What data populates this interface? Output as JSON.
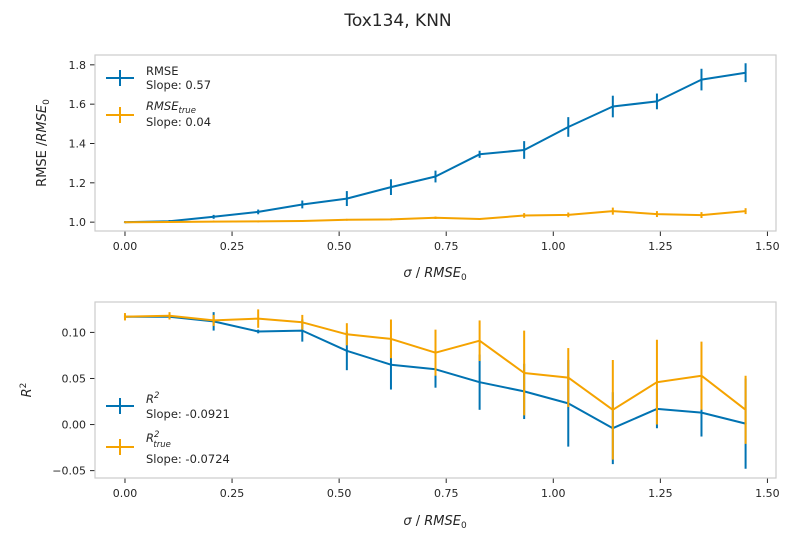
{
  "figure": {
    "title": "Tox134, KNN"
  },
  "colors": {
    "series1": "#0173b2",
    "series2": "#f5a300"
  },
  "chart_data": [
    {
      "type": "line",
      "xlabel": "σ / RMSE₀",
      "ylabel": "RMSE /RMSE₀",
      "xlim": [
        -0.07,
        1.52
      ],
      "ylim": [
        0.955,
        1.85
      ],
      "xticks": [
        "0.00",
        "0.25",
        "0.50",
        "0.75",
        "1.00",
        "1.25",
        "1.50"
      ],
      "yticks": [
        "1.0",
        "1.2",
        "1.4",
        "1.6",
        "1.8"
      ],
      "legend_position": "upper-left",
      "x": [
        0.0,
        0.104,
        0.207,
        0.311,
        0.414,
        0.518,
        0.621,
        0.725,
        0.828,
        0.932,
        1.035,
        1.139,
        1.242,
        1.346,
        1.449
      ],
      "series": [
        {
          "name": "RMSE",
          "slope_label": "Slope: 0.57",
          "values": [
            1.0,
            1.005,
            1.027,
            1.052,
            1.09,
            1.12,
            1.178,
            1.232,
            1.345,
            1.367,
            1.484,
            1.588,
            1.614,
            1.725,
            1.76
          ],
          "errors": [
            0.005,
            0.006,
            0.01,
            0.012,
            0.02,
            0.038,
            0.04,
            0.03,
            0.018,
            0.045,
            0.05,
            0.055,
            0.04,
            0.055,
            0.048
          ]
        },
        {
          "name": "RMSE",
          "name_sub": "true",
          "slope_label": "Slope: 0.04",
          "values": [
            1.0,
            1.001,
            1.003,
            1.004,
            1.006,
            1.012,
            1.014,
            1.022,
            1.016,
            1.034,
            1.037,
            1.056,
            1.041,
            1.036,
            1.056
          ],
          "errors": [
            0.003,
            0.003,
            0.003,
            0.004,
            0.004,
            0.004,
            0.005,
            0.006,
            0.005,
            0.012,
            0.012,
            0.018,
            0.015,
            0.015,
            0.015
          ]
        }
      ]
    },
    {
      "type": "line",
      "xlabel": "σ / RMSE₀",
      "ylabel": "R²",
      "xlim": [
        -0.07,
        1.52
      ],
      "ylim": [
        -0.058,
        0.133
      ],
      "xticks": [
        "0.00",
        "0.25",
        "0.50",
        "0.75",
        "1.00",
        "1.25",
        "1.50"
      ],
      "yticks": [
        "−0.05",
        "0.00",
        "0.05",
        "0.10"
      ],
      "legend_position": "center-left",
      "x": [
        0.0,
        0.104,
        0.207,
        0.311,
        0.414,
        0.518,
        0.621,
        0.725,
        0.828,
        0.932,
        1.035,
        1.139,
        1.242,
        1.346,
        1.449
      ],
      "series": [
        {
          "name": "R",
          "name_sup": "2",
          "slope_label": "Slope: -0.0921",
          "values": [
            0.117,
            0.117,
            0.112,
            0.101,
            0.102,
            0.08,
            0.065,
            0.06,
            0.046,
            0.036,
            0.023,
            -0.004,
            0.017,
            0.013,
            0.001
          ],
          "errors": [
            0.002,
            0.002,
            0.01,
            0.002,
            0.012,
            0.021,
            0.027,
            0.02,
            0.03,
            0.03,
            0.047,
            0.039,
            0.021,
            0.026,
            0.049
          ]
        },
        {
          "name": "R",
          "name_sup": "2",
          "name_sub": "true",
          "slope_label": "Slope: -0.0724",
          "values": [
            0.117,
            0.118,
            0.113,
            0.115,
            0.111,
            0.098,
            0.093,
            0.078,
            0.091,
            0.056,
            0.051,
            0.016,
            0.046,
            0.053,
            0.016
          ],
          "errors": [
            0.004,
            0.004,
            0.006,
            0.01,
            0.008,
            0.012,
            0.021,
            0.025,
            0.022,
            0.046,
            0.032,
            0.054,
            0.046,
            0.037,
            0.037
          ]
        }
      ]
    }
  ]
}
